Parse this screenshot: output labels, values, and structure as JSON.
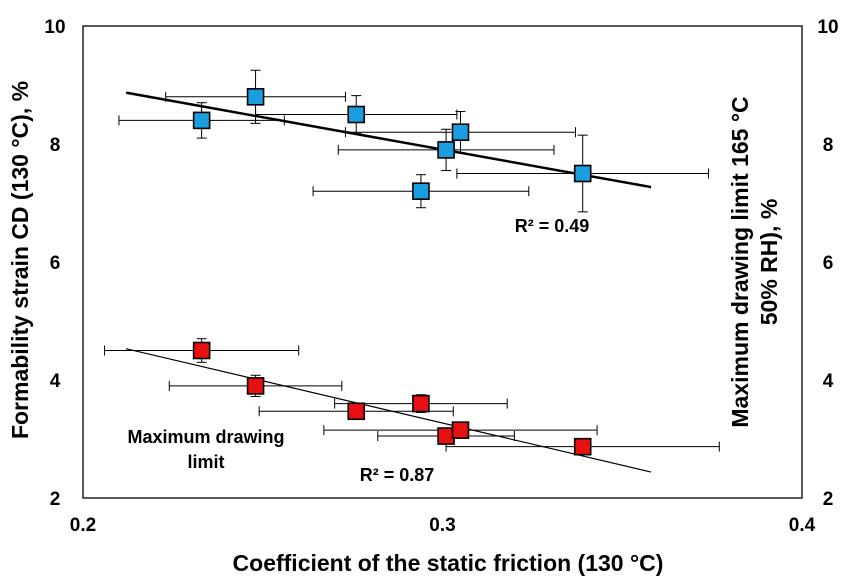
{
  "chart_data": {
    "type": "scatter",
    "xlabel": "Coefficient of the static friction (130 °C)",
    "ylabel_left": "Formability strain CD (130 °C), %",
    "ylabel_right_line1": "Maximum drawing limit 165 °C",
    "ylabel_right_line2": "50% RH), %",
    "xlim": [
      0.2,
      0.4
    ],
    "ylim_left": [
      2,
      10
    ],
    "ylim_right": [
      2,
      10
    ],
    "x_ticks": [
      "0.2",
      "0.3",
      "0.4"
    ],
    "y_ticks_left": [
      "2",
      "4",
      "6",
      "8",
      "10"
    ],
    "y_ticks_right": [
      "2",
      "4",
      "6",
      "8",
      "10"
    ],
    "grid": false,
    "legend": "none",
    "series": [
      {
        "color": "#1a9ee0",
        "points": [
          {
            "x": 0.233,
            "y": 8.4,
            "xerr": 0.023,
            "yerr": 0.3
          },
          {
            "x": 0.248,
            "y": 8.8,
            "xerr": 0.025,
            "yerr": 0.45
          },
          {
            "x": 0.276,
            "y": 8.5,
            "xerr": 0.028,
            "yerr": 0.32
          },
          {
            "x": 0.301,
            "y": 7.9,
            "xerr": 0.03,
            "yerr": 0.35
          },
          {
            "x": 0.305,
            "y": 8.2,
            "xerr": 0.032,
            "yerr": 0.35
          },
          {
            "x": 0.294,
            "y": 7.2,
            "xerr": 0.03,
            "yerr": 0.28
          },
          {
            "x": 0.339,
            "y": 7.5,
            "xerr": 0.035,
            "yerr": 0.65
          }
        ],
        "trendline": {
          "x": [
            0.212,
            0.358
          ],
          "y": [
            8.87,
            7.27
          ],
          "stroke_width": 2.5
        },
        "r2_label": "R² = 0.49"
      },
      {
        "color": "#e81010",
        "points": [
          {
            "x": 0.233,
            "y": 4.5,
            "xerr": 0.027,
            "yerr": 0.2
          },
          {
            "x": 0.248,
            "y": 3.9,
            "xerr": 0.024,
            "yerr": 0.18
          },
          {
            "x": 0.276,
            "y": 3.47,
            "xerr": 0.027,
            "yerr": 0.12
          },
          {
            "x": 0.294,
            "y": 3.6,
            "xerr": 0.024,
            "yerr": 0.15
          },
          {
            "x": 0.301,
            "y": 3.05,
            "xerr": 0.019,
            "yerr": 0.1
          },
          {
            "x": 0.305,
            "y": 3.15,
            "xerr": 0.038,
            "yerr": 0.1
          },
          {
            "x": 0.339,
            "y": 2.87,
            "xerr": 0.038,
            "yerr": 0.08
          }
        ],
        "trendline": {
          "x": [
            0.212,
            0.358
          ],
          "y": [
            4.53,
            2.44
          ],
          "stroke_width": 1.2
        },
        "r2_label": "R² = 0.87"
      }
    ],
    "annotations": [
      {
        "text_line1": "Maximum drawing",
        "text_line2": "limit"
      }
    ]
  }
}
